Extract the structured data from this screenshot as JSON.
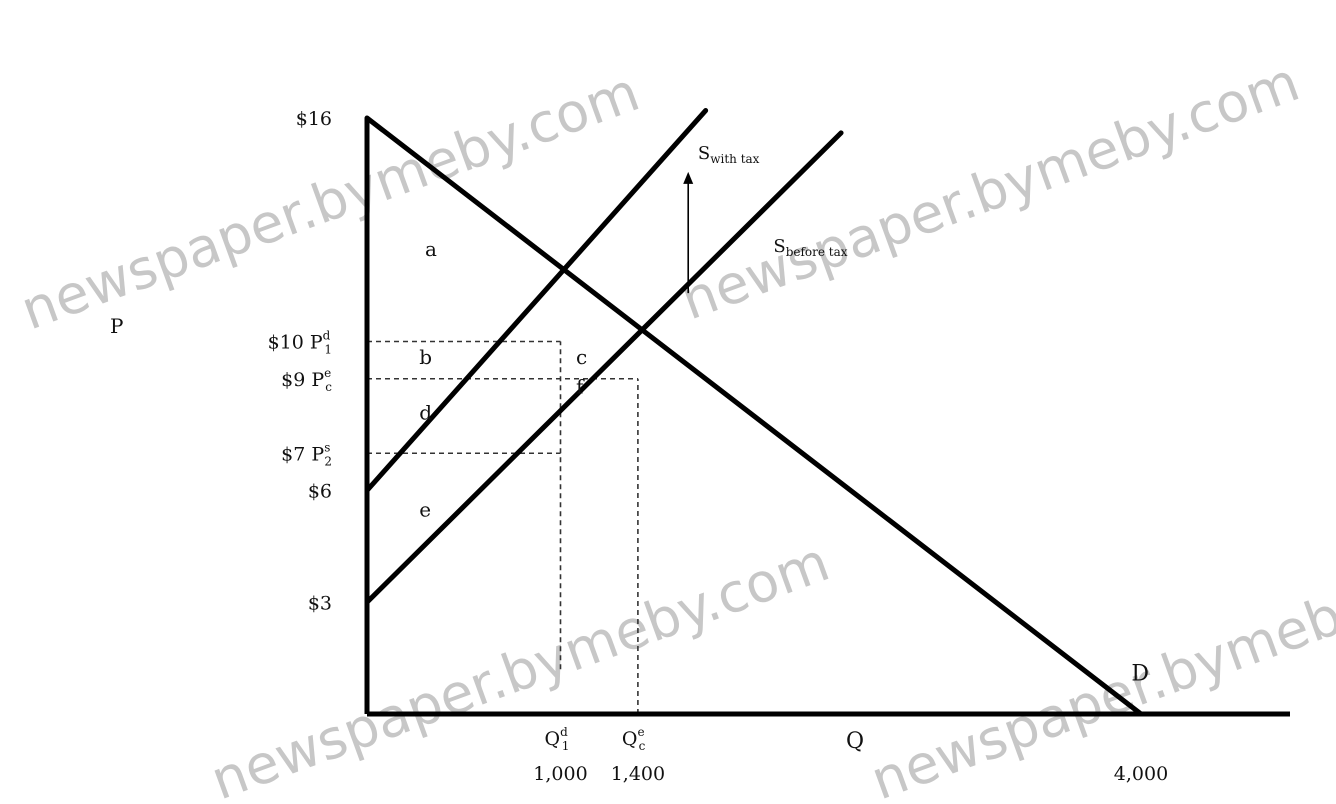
{
  "chart_data": {
    "type": "line",
    "xlabel": "Q",
    "ylabel": "P",
    "xlim": [
      0,
      4700
    ],
    "ylim": [
      0,
      16
    ],
    "grid": false,
    "lines": [
      {
        "id": "demand",
        "label": "D",
        "points": [
          [
            0,
            16
          ],
          [
            4000,
            0
          ]
        ]
      },
      {
        "id": "supply_after_tax",
        "label": "S_with tax",
        "points": [
          [
            0,
            6
          ],
          [
            1750,
            16.2
          ]
        ]
      },
      {
        "id": "supply_before_tax",
        "label": "S_before tax",
        "points": [
          [
            0,
            3
          ],
          [
            2450,
            15.6
          ]
        ]
      }
    ],
    "y_ticks": [
      {
        "value": 16,
        "label": "$16",
        "sub": "",
        "sup": ""
      },
      {
        "value": 10,
        "label": "$10 P",
        "sup": "d",
        "sub": "1"
      },
      {
        "value": 9,
        "label": "$9 P",
        "sup": "e",
        "sub": "c"
      },
      {
        "value": 7,
        "label": "$7 P",
        "sup": "s",
        "sub": "2"
      },
      {
        "value": 6,
        "label": "$6",
        "sub": "",
        "sup": ""
      },
      {
        "value": 3,
        "label": "$3",
        "sub": "",
        "sup": ""
      }
    ],
    "x_ticks": [
      {
        "value": 1000,
        "label": "Q",
        "sup": "d",
        "sub": "1",
        "number": "1,000"
      },
      {
        "value": 1400,
        "label": "Q",
        "sup": "e",
        "sub": "c",
        "number": "1,400"
      },
      {
        "value": 4000,
        "label": "",
        "sup": "",
        "sub": "",
        "number": "4,000"
      }
    ],
    "guide_lines": [
      {
        "type": "h",
        "y": 10,
        "x_to": 1000
      },
      {
        "type": "h",
        "y": 9,
        "x_to": 1400
      },
      {
        "type": "h",
        "y": 7,
        "x_to": 1000
      },
      {
        "type": "v",
        "x": 1000,
        "y_from": 1.2,
        "y_to": 10
      },
      {
        "type": "v",
        "x": 1400,
        "y_from": 0,
        "y_to": 9
      }
    ],
    "regions": [
      {
        "label": "a",
        "x": 300,
        "y": 12.3
      },
      {
        "label": "b",
        "x": 270,
        "y": 9.4
      },
      {
        "label": "c",
        "x": 1080,
        "y": 9.4
      },
      {
        "label": "f",
        "x": 1080,
        "y": 8.6
      },
      {
        "label": "d",
        "x": 270,
        "y": 7.9
      },
      {
        "label": "e",
        "x": 270,
        "y": 5.3
      }
    ],
    "line_labels": [
      {
        "text": "S",
        "sub": "with tax",
        "x": 1710,
        "y": 14.9
      },
      {
        "text": "S",
        "sub": "before tax",
        "x": 2100,
        "y": 12.4
      },
      {
        "text": "D",
        "x": 3950,
        "y": 0.9
      }
    ],
    "arrow": {
      "x": 1660,
      "y_from": 11.3,
      "y_to": 14.5
    },
    "watermark": "newspaper.bymeby.com"
  }
}
